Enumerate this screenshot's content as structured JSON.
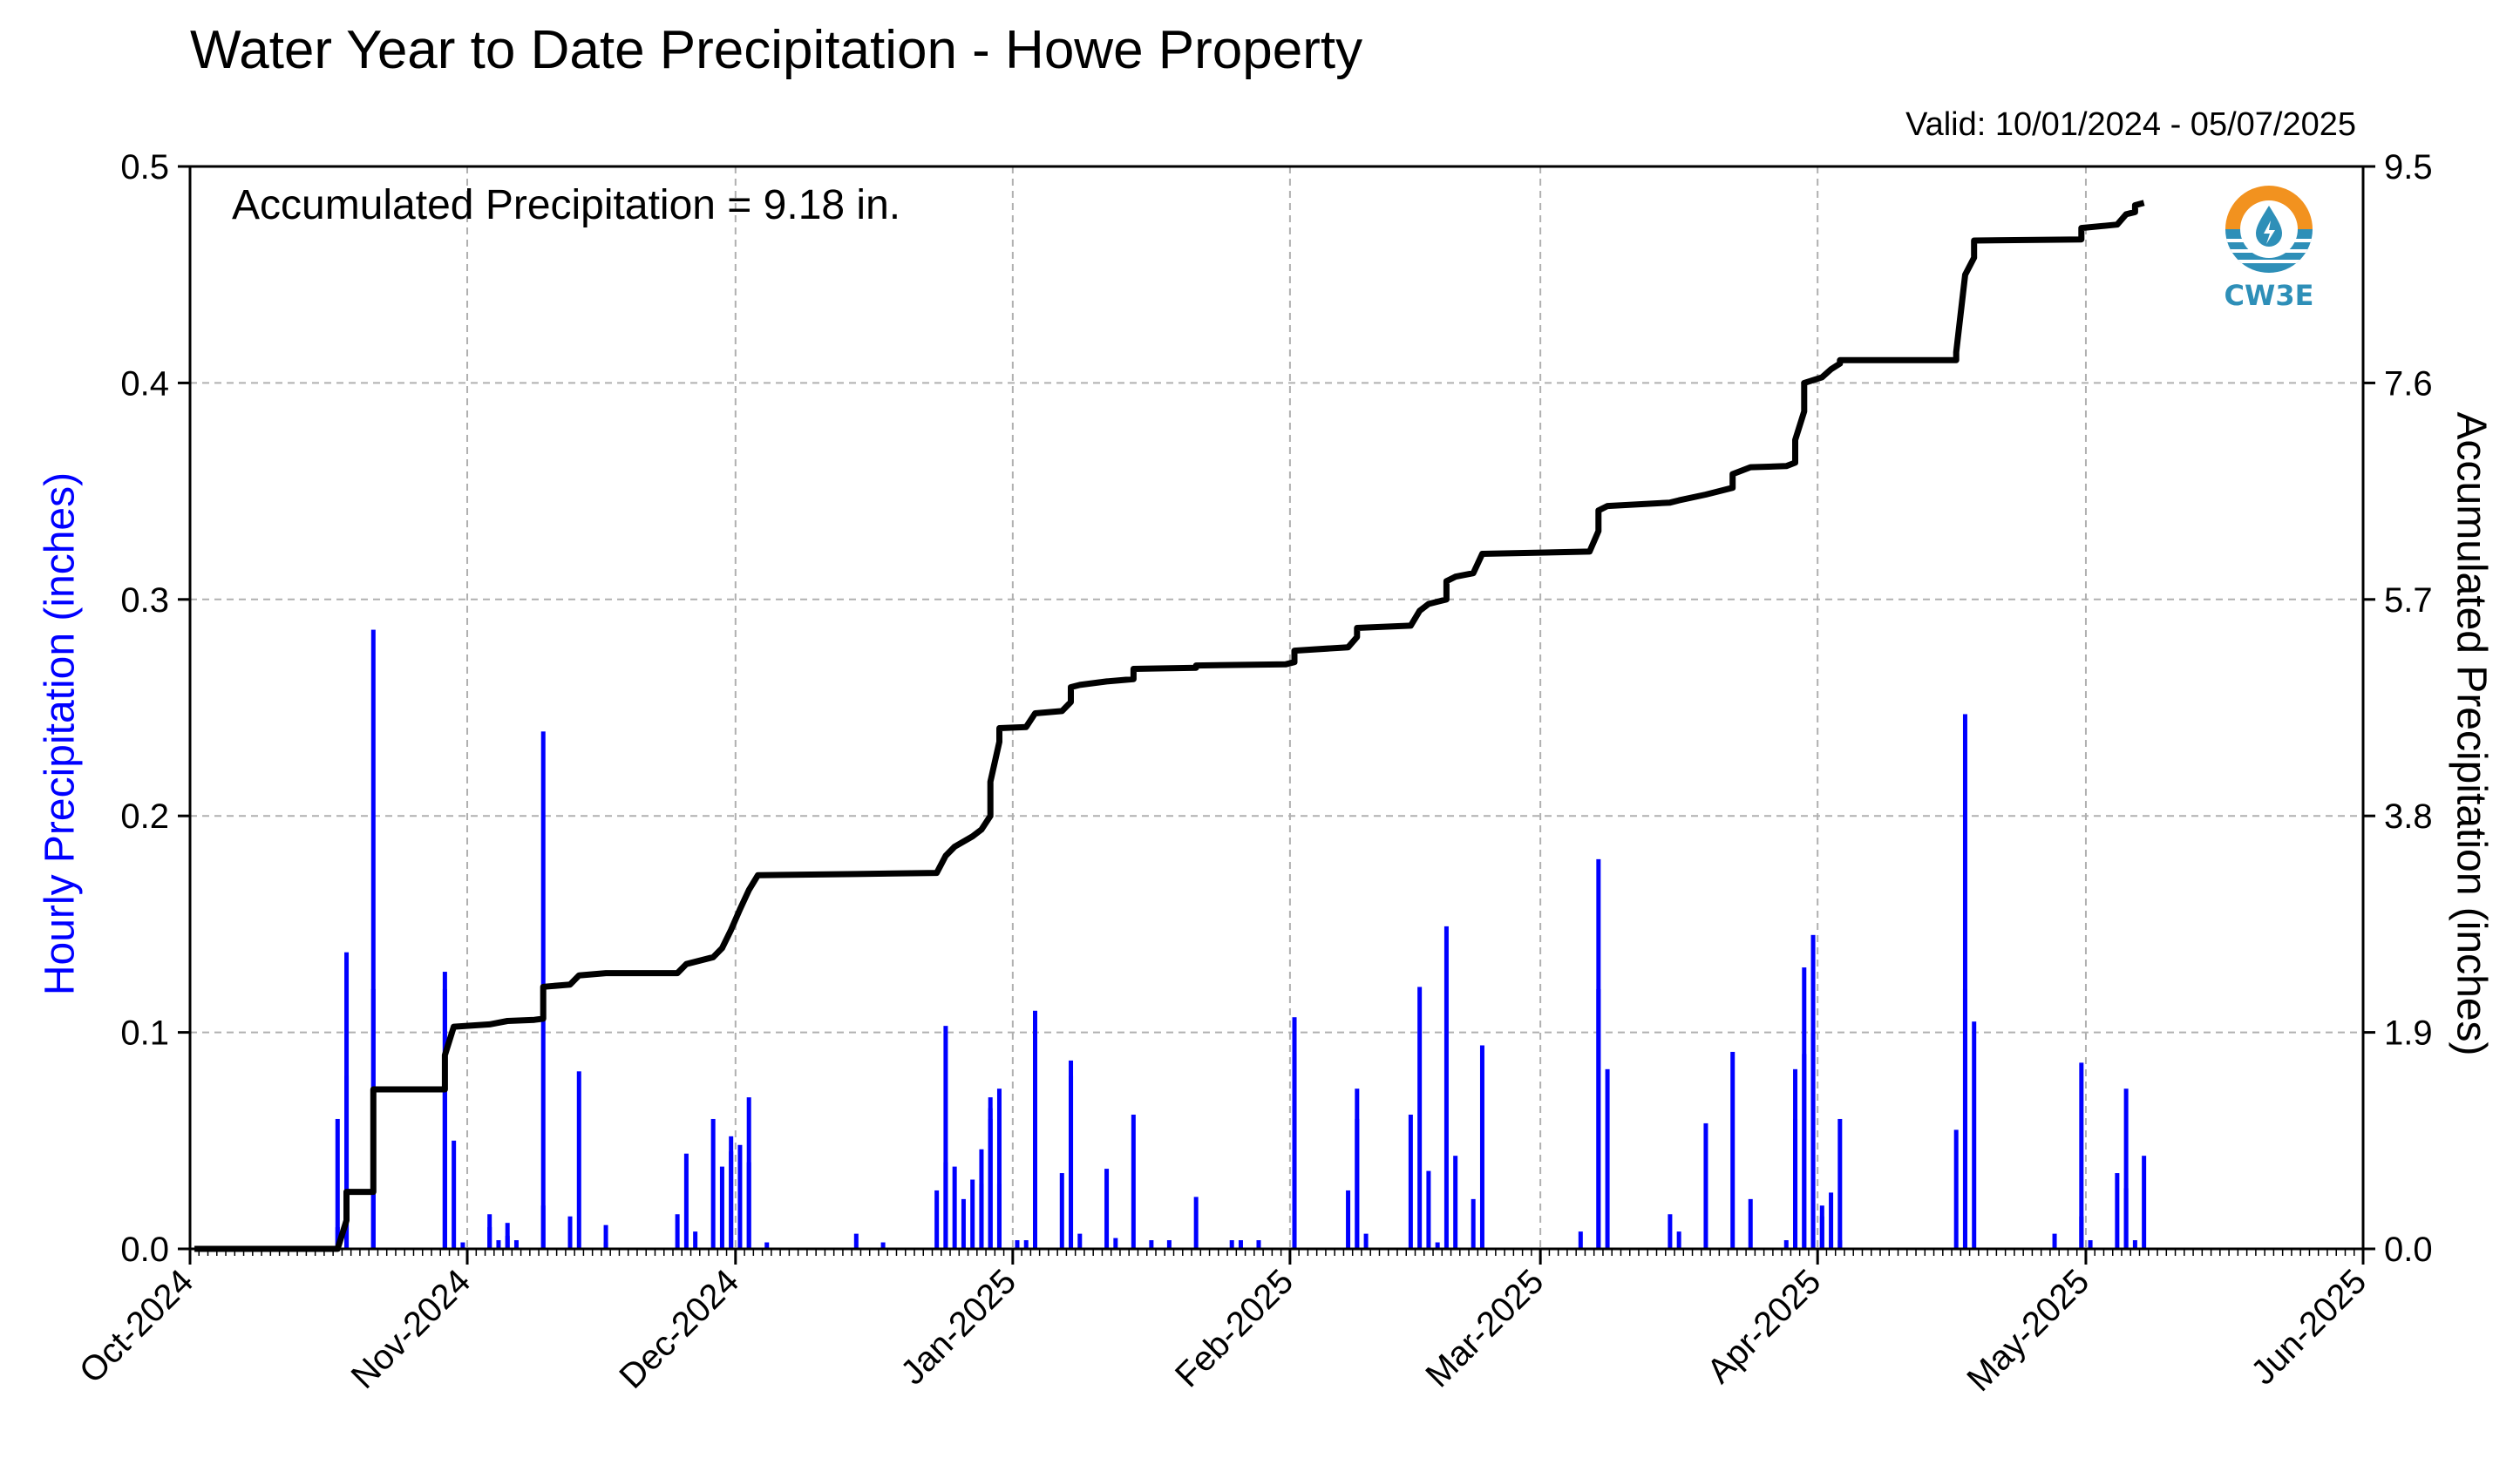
{
  "chart_data": {
    "type": "bar",
    "title": "Water Year to Date Precipitation - Howe Property",
    "subtitle": "Valid: 10/01/2024 - 05/07/2025",
    "annotation": "Accumulated Precipitation = 9.18 in.",
    "logo_text": "CW3E",
    "ylabel_left": "Hourly Precipitation (inches)",
    "ylabel_right": "Accumulated Precipitation (inches)",
    "ylim_left": [
      0,
      0.5
    ],
    "ylim_right": [
      0,
      9.5
    ],
    "yticks_left": [
      "0.0",
      "0.1",
      "0.2",
      "0.3",
      "0.4",
      "0.5"
    ],
    "yticks_right": [
      "0.0",
      "1.9",
      "3.8",
      "5.7",
      "7.6",
      "9.5"
    ],
    "x_start": "2024-10-01",
    "x_end": "2025-06-01",
    "xticks": [
      "Oct-2024",
      "Nov-2024",
      "Dec-2024",
      "Jan-2025",
      "Feb-2025",
      "Mar-2025",
      "Apr-2025",
      "May-2025",
      "Jun-2025"
    ],
    "grid": true,
    "colors": {
      "hourly": "#0000ff",
      "accumulated": "#000000",
      "grid": "#b0b0b0"
    },
    "series": [
      {
        "name": "Hourly Precipitation",
        "type": "bar",
        "points": [
          [
            "2024-10-17",
            0.01
          ],
          [
            "2024-10-17",
            0.06
          ],
          [
            "2024-10-18",
            0.137
          ],
          [
            "2024-10-18",
            0.08
          ],
          [
            "2024-10-18",
            0.035
          ],
          [
            "2024-10-21",
            0.286
          ],
          [
            "2024-10-21",
            0.12
          ],
          [
            "2024-10-21",
            0.05
          ],
          [
            "2024-10-29",
            0.128
          ],
          [
            "2024-10-29",
            0.12
          ],
          [
            "2024-10-29",
            0.09
          ],
          [
            "2024-10-30",
            0.05
          ],
          [
            "2024-10-31",
            0.003
          ],
          [
            "2024-11-03",
            0.016
          ],
          [
            "2024-11-03",
            0.01
          ],
          [
            "2024-11-04",
            0.004
          ],
          [
            "2024-11-05",
            0.012
          ],
          [
            "2024-11-05",
            0.006
          ],
          [
            "2024-11-06",
            0.004
          ],
          [
            "2024-11-09",
            0.239
          ],
          [
            "2024-11-09",
            0.02
          ],
          [
            "2024-11-12",
            0.015
          ],
          [
            "2024-11-13",
            0.082
          ],
          [
            "2024-11-16",
            0.011
          ],
          [
            "2024-11-16",
            0.003
          ],
          [
            "2024-11-24",
            0.016
          ],
          [
            "2024-11-25",
            0.044
          ],
          [
            "2024-11-26",
            0.008
          ],
          [
            "2024-11-28",
            0.06
          ],
          [
            "2024-11-29",
            0.038
          ],
          [
            "2024-11-30",
            0.052
          ],
          [
            "2024-11-30",
            0.045
          ],
          [
            "2024-12-01",
            0.048
          ],
          [
            "2024-12-02",
            0.07
          ],
          [
            "2024-12-02",
            0.04
          ],
          [
            "2024-12-04",
            0.003
          ],
          [
            "2024-12-14",
            0.007
          ],
          [
            "2024-12-17",
            0.003
          ],
          [
            "2024-12-23",
            0.027
          ],
          [
            "2024-12-24",
            0.103
          ],
          [
            "2024-12-24",
            0.04
          ],
          [
            "2024-12-25",
            0.038
          ],
          [
            "2024-12-26",
            0.023
          ],
          [
            "2024-12-27",
            0.032
          ],
          [
            "2024-12-28",
            0.03
          ],
          [
            "2024-12-28",
            0.046
          ],
          [
            "2024-12-29",
            0.06
          ],
          [
            "2024-12-29",
            0.065
          ],
          [
            "2024-12-29",
            0.07
          ],
          [
            "2024-12-30",
            0.074
          ],
          [
            "2024-12-30",
            0.03
          ],
          [
            "2025-01-01",
            0.004
          ],
          [
            "2025-01-02",
            0.004
          ],
          [
            "2025-01-03",
            0.11
          ],
          [
            "2025-01-06",
            0.035
          ],
          [
            "2025-01-07",
            0.087
          ],
          [
            "2025-01-07",
            0.08
          ],
          [
            "2025-01-08",
            0.007
          ],
          [
            "2025-01-11",
            0.037
          ],
          [
            "2025-01-12",
            0.005
          ],
          [
            "2025-01-14",
            0.062
          ],
          [
            "2025-01-16",
            0.004
          ],
          [
            "2025-01-18",
            0.004
          ],
          [
            "2025-01-21",
            0.024
          ],
          [
            "2025-01-25",
            0.004
          ],
          [
            "2025-01-26",
            0.004
          ],
          [
            "2025-01-28",
            0.004
          ],
          [
            "2025-02-01",
            0.107
          ],
          [
            "2025-02-01",
            0.09
          ],
          [
            "2025-02-07",
            0.027
          ],
          [
            "2025-02-08",
            0.074
          ],
          [
            "2025-02-08",
            0.06
          ],
          [
            "2025-02-09",
            0.007
          ],
          [
            "2025-02-14",
            0.062
          ],
          [
            "2025-02-15",
            0.121
          ],
          [
            "2025-02-16",
            0.036
          ],
          [
            "2025-02-17",
            0.003
          ],
          [
            "2025-02-18",
            0.149
          ],
          [
            "2025-02-19",
            0.043
          ],
          [
            "2025-02-21",
            0.023
          ],
          [
            "2025-02-22",
            0.094
          ],
          [
            "2025-03-05",
            0.008
          ],
          [
            "2025-03-07",
            0.18
          ],
          [
            "2025-03-07",
            0.12
          ],
          [
            "2025-03-08",
            0.083
          ],
          [
            "2025-03-15",
            0.016
          ],
          [
            "2025-03-16",
            0.008
          ],
          [
            "2025-03-19",
            0.058
          ],
          [
            "2025-03-22",
            0.091
          ],
          [
            "2025-03-24",
            0.023
          ],
          [
            "2025-03-28",
            0.004
          ],
          [
            "2025-03-29",
            0.083
          ],
          [
            "2025-03-29",
            0.06
          ],
          [
            "2025-03-30",
            0.13
          ],
          [
            "2025-03-30",
            0.09
          ],
          [
            "2025-03-31",
            0.145
          ],
          [
            "2025-03-31",
            0.1
          ],
          [
            "2025-04-01",
            0.02
          ],
          [
            "2025-04-01",
            0.015
          ],
          [
            "2025-04-02",
            0.026
          ],
          [
            "2025-04-02",
            0.004
          ],
          [
            "2025-04-03",
            0.06
          ],
          [
            "2025-04-03",
            0.004
          ],
          [
            "2025-04-16",
            0.055
          ],
          [
            "2025-04-17",
            0.247
          ],
          [
            "2025-04-17",
            0.12
          ],
          [
            "2025-04-18",
            0.105
          ],
          [
            "2025-04-27",
            0.007
          ],
          [
            "2025-04-30",
            0.015
          ],
          [
            "2025-04-30",
            0.086
          ],
          [
            "2025-05-01",
            0.004
          ],
          [
            "2025-05-04",
            0.035
          ],
          [
            "2025-05-05",
            0.074
          ],
          [
            "2025-05-05",
            0.028
          ],
          [
            "2025-05-06",
            0.004
          ],
          [
            "2025-05-07",
            0.043
          ]
        ]
      },
      {
        "name": "Accumulated Precipitation",
        "type": "line",
        "points": [
          [
            "2024-10-01",
            0.0
          ],
          [
            "2024-10-17",
            0.0
          ],
          [
            "2024-10-18",
            0.25
          ],
          [
            "2024-10-18",
            0.5
          ],
          [
            "2024-10-21",
            0.5
          ],
          [
            "2024-10-21",
            1.4
          ],
          [
            "2024-10-29",
            1.4
          ],
          [
            "2024-10-29",
            1.7
          ],
          [
            "2024-10-30",
            1.95
          ],
          [
            "2024-11-03",
            1.97
          ],
          [
            "2024-11-05",
            2.0
          ],
          [
            "2024-11-08",
            2.01
          ],
          [
            "2024-11-09",
            2.02
          ],
          [
            "2024-11-09",
            2.3
          ],
          [
            "2024-11-12",
            2.32
          ],
          [
            "2024-11-13",
            2.4
          ],
          [
            "2024-11-16",
            2.42
          ],
          [
            "2024-11-24",
            2.42
          ],
          [
            "2024-11-25",
            2.5
          ],
          [
            "2024-11-28",
            2.56
          ],
          [
            "2024-11-29",
            2.64
          ],
          [
            "2024-11-30",
            2.8
          ],
          [
            "2024-12-01",
            2.98
          ],
          [
            "2024-12-02",
            3.15
          ],
          [
            "2024-12-03",
            3.28
          ],
          [
            "2024-12-14",
            3.29
          ],
          [
            "2024-12-23",
            3.3
          ],
          [
            "2024-12-24",
            3.45
          ],
          [
            "2024-12-25",
            3.53
          ],
          [
            "2024-12-27",
            3.62
          ],
          [
            "2024-12-28",
            3.68
          ],
          [
            "2024-12-29",
            3.8
          ],
          [
            "2024-12-29",
            4.1
          ],
          [
            "2024-12-30",
            4.45
          ],
          [
            "2024-12-30",
            4.57
          ],
          [
            "2025-01-02",
            4.58
          ],
          [
            "2025-01-03",
            4.7
          ],
          [
            "2025-01-06",
            4.72
          ],
          [
            "2025-01-07",
            4.8
          ],
          [
            "2025-01-07",
            4.93
          ],
          [
            "2025-01-08",
            4.95
          ],
          [
            "2025-01-11",
            4.98
          ],
          [
            "2025-01-14",
            5.0
          ],
          [
            "2025-01-14",
            5.09
          ],
          [
            "2025-01-21",
            5.1
          ],
          [
            "2025-01-21",
            5.12
          ],
          [
            "2025-01-31",
            5.13
          ],
          [
            "2025-02-01",
            5.15
          ],
          [
            "2025-02-01",
            5.25
          ],
          [
            "2025-02-07",
            5.28
          ],
          [
            "2025-02-08",
            5.37
          ],
          [
            "2025-02-08",
            5.45
          ],
          [
            "2025-02-14",
            5.47
          ],
          [
            "2025-02-15",
            5.6
          ],
          [
            "2025-02-16",
            5.66
          ],
          [
            "2025-02-18",
            5.7
          ],
          [
            "2025-02-18",
            5.86
          ],
          [
            "2025-02-19",
            5.9
          ],
          [
            "2025-02-21",
            5.93
          ],
          [
            "2025-02-22",
            6.1
          ],
          [
            "2025-03-06",
            6.12
          ],
          [
            "2025-03-07",
            6.3
          ],
          [
            "2025-03-07",
            6.48
          ],
          [
            "2025-03-08",
            6.52
          ],
          [
            "2025-03-15",
            6.55
          ],
          [
            "2025-03-16",
            6.57
          ],
          [
            "2025-03-19",
            6.62
          ],
          [
            "2025-03-22",
            6.68
          ],
          [
            "2025-03-22",
            6.8
          ],
          [
            "2025-03-24",
            6.86
          ],
          [
            "2025-03-28",
            6.87
          ],
          [
            "2025-03-29",
            6.9
          ],
          [
            "2025-03-29",
            7.1
          ],
          [
            "2025-03-30",
            7.35
          ],
          [
            "2025-03-30",
            7.6
          ],
          [
            "2025-04-01",
            7.65
          ],
          [
            "2025-04-02",
            7.72
          ],
          [
            "2025-04-03",
            7.77
          ],
          [
            "2025-04-03",
            7.8
          ],
          [
            "2025-04-16",
            7.8
          ],
          [
            "2025-04-16",
            7.87
          ],
          [
            "2025-04-17",
            8.55
          ],
          [
            "2025-04-18",
            8.7
          ],
          [
            "2025-04-18",
            8.85
          ],
          [
            "2025-04-30",
            8.86
          ],
          [
            "2025-04-30",
            8.96
          ],
          [
            "2025-05-04",
            8.99
          ],
          [
            "2025-05-05",
            9.08
          ],
          [
            "2025-05-06",
            9.1
          ],
          [
            "2025-05-06",
            9.16
          ],
          [
            "2025-05-07",
            9.18
          ]
        ]
      }
    ]
  }
}
